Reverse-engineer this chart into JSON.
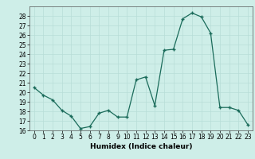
{
  "x": [
    0,
    1,
    2,
    3,
    4,
    5,
    6,
    7,
    8,
    9,
    10,
    11,
    12,
    13,
    14,
    15,
    16,
    17,
    18,
    19,
    20,
    21,
    22,
    23
  ],
  "y": [
    20.5,
    19.7,
    19.2,
    18.1,
    17.5,
    16.2,
    16.4,
    17.8,
    18.1,
    17.4,
    17.4,
    21.3,
    21.6,
    18.6,
    24.4,
    24.5,
    27.7,
    28.3,
    27.9,
    26.2,
    18.4,
    18.4,
    18.1,
    16.6
  ],
  "xlabel": "Humidex (Indice chaleur)",
  "xlim": [
    -0.5,
    23.5
  ],
  "ylim": [
    16,
    29
  ],
  "yticks": [
    16,
    17,
    18,
    19,
    20,
    21,
    22,
    23,
    24,
    25,
    26,
    27,
    28
  ],
  "xticks": [
    0,
    1,
    2,
    3,
    4,
    5,
    6,
    7,
    8,
    9,
    10,
    11,
    12,
    13,
    14,
    15,
    16,
    17,
    18,
    19,
    20,
    21,
    22,
    23
  ],
  "line_color": "#1a6b5a",
  "marker_color": "#1a6b5a",
  "bg_color": "#ceeee8",
  "grid_color": "#b8ddd7",
  "spine_color": "#555555",
  "tick_fontsize": 5.5,
  "xlabel_fontsize": 6.5
}
